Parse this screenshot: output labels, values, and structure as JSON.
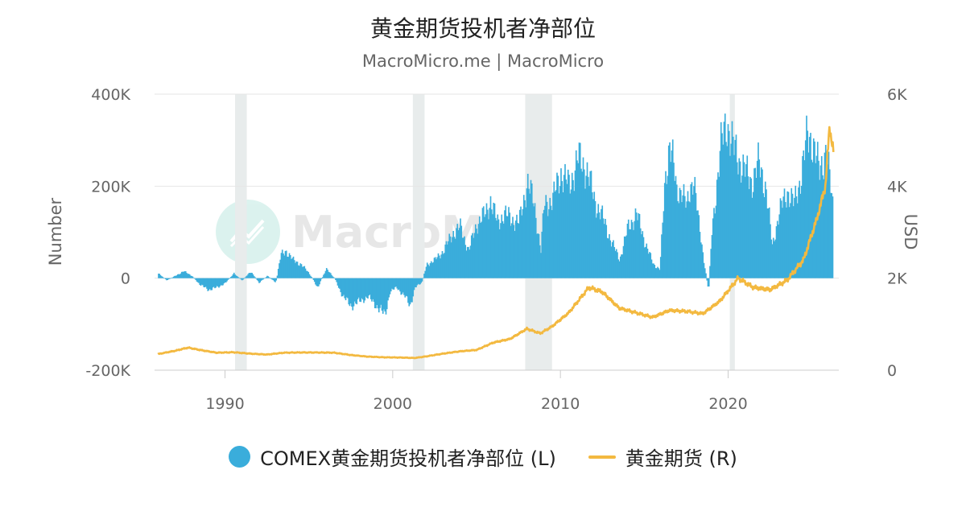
{
  "title": "黄金期货投机者净部位",
  "subtitle": "MacroMicro.me | MacroMicro",
  "watermark": {
    "text": "MacroMicro",
    "icon": "chart-line-icon"
  },
  "colors": {
    "bars": "#3aaddb",
    "line": "#f3b940",
    "recession": "#e8ecec",
    "grid": "#e6e6e6"
  },
  "legend": {
    "bars_label": "COMEX黄金期货投机者净部位 (L)",
    "line_label": "黄金期货 (R)"
  },
  "chart_data": {
    "type": "bar+line",
    "title": "黄金期货投机者净部位",
    "subtitle": "MacroMicro.me | MacroMicro",
    "x_ticks": [
      "1990",
      "2000",
      "2010",
      "2020"
    ],
    "xlim": [
      1985.8,
      2026.6
    ],
    "left_axis": {
      "label": "Number",
      "ticks": [
        "400K",
        "200K",
        "0",
        "-200K"
      ],
      "tick_values": [
        400000,
        200000,
        0,
        -200000
      ],
      "range": [
        -200000,
        400000
      ]
    },
    "right_axis": {
      "label": "USD",
      "ticks": [
        "6K",
        "4K",
        "2K",
        "0"
      ],
      "tick_values": [
        6000,
        4000,
        2000,
        0
      ],
      "range": [
        0,
        6000
      ]
    },
    "recession_bands": [
      [
        1990.6,
        1991.3
      ],
      [
        2001.2,
        2001.9
      ],
      [
        2007.9,
        2009.5
      ],
      [
        2020.1,
        2020.4
      ]
    ],
    "series": [
      {
        "name": "COMEX黄金期货投机者净部位 (L)",
        "axis": "left",
        "type": "bar",
        "points": [
          [
            1986.0,
            10000
          ],
          [
            1986.5,
            -5000
          ],
          [
            1987.0,
            5000
          ],
          [
            1987.5,
            15000
          ],
          [
            1988.0,
            5000
          ],
          [
            1988.5,
            -15000
          ],
          [
            1989.0,
            -25000
          ],
          [
            1989.5,
            -20000
          ],
          [
            1990.0,
            -10000
          ],
          [
            1990.5,
            10000
          ],
          [
            1991.0,
            -5000
          ],
          [
            1991.5,
            15000
          ],
          [
            1992.0,
            -10000
          ],
          [
            1992.5,
            5000
          ],
          [
            1993.0,
            -10000
          ],
          [
            1993.3,
            50000
          ],
          [
            1993.6,
            60000
          ],
          [
            1994.0,
            40000
          ],
          [
            1994.5,
            30000
          ],
          [
            1995.0,
            10000
          ],
          [
            1995.5,
            -20000
          ],
          [
            1996.0,
            20000
          ],
          [
            1996.5,
            0
          ],
          [
            1997.0,
            -40000
          ],
          [
            1997.5,
            -60000
          ],
          [
            1998.0,
            -50000
          ],
          [
            1998.5,
            -40000
          ],
          [
            1999.0,
            -60000
          ],
          [
            1999.5,
            -80000
          ],
          [
            1999.8,
            -30000
          ],
          [
            2000.2,
            -20000
          ],
          [
            2000.7,
            -40000
          ],
          [
            2001.0,
            -60000
          ],
          [
            2001.3,
            -20000
          ],
          [
            2001.7,
            -10000
          ],
          [
            2002.0,
            30000
          ],
          [
            2002.5,
            40000
          ],
          [
            2003.0,
            60000
          ],
          [
            2003.3,
            80000
          ],
          [
            2003.6,
            100000
          ],
          [
            2004.0,
            110000
          ],
          [
            2004.5,
            60000
          ],
          [
            2005.0,
            120000
          ],
          [
            2005.5,
            140000
          ],
          [
            2005.8,
            170000
          ],
          [
            2006.2,
            120000
          ],
          [
            2006.6,
            140000
          ],
          [
            2007.0,
            130000
          ],
          [
            2007.5,
            120000
          ],
          [
            2008.0,
            210000
          ],
          [
            2008.4,
            160000
          ],
          [
            2008.8,
            60000
          ],
          [
            2009.0,
            160000
          ],
          [
            2009.5,
            170000
          ],
          [
            2010.0,
            230000
          ],
          [
            2010.5,
            200000
          ],
          [
            2011.0,
            260000
          ],
          [
            2011.5,
            240000
          ],
          [
            2012.0,
            170000
          ],
          [
            2012.5,
            130000
          ],
          [
            2013.0,
            80000
          ],
          [
            2013.5,
            40000
          ],
          [
            2014.0,
            110000
          ],
          [
            2014.5,
            140000
          ],
          [
            2015.0,
            80000
          ],
          [
            2015.5,
            30000
          ],
          [
            2015.9,
            20000
          ],
          [
            2016.2,
            200000
          ],
          [
            2016.5,
            310000
          ],
          [
            2016.9,
            180000
          ],
          [
            2017.2,
            200000
          ],
          [
            2017.5,
            150000
          ],
          [
            2017.9,
            230000
          ],
          [
            2018.2,
            120000
          ],
          [
            2018.6,
            20000
          ],
          [
            2018.8,
            -30000
          ],
          [
            2019.0,
            100000
          ],
          [
            2019.5,
            280000
          ],
          [
            2019.9,
            340000
          ],
          [
            2020.3,
            280000
          ],
          [
            2020.6,
            260000
          ],
          [
            2021.0,
            230000
          ],
          [
            2021.4,
            210000
          ],
          [
            2021.8,
            250000
          ],
          [
            2022.2,
            200000
          ],
          [
            2022.6,
            70000
          ],
          [
            2023.0,
            140000
          ],
          [
            2023.5,
            190000
          ],
          [
            2023.9,
            160000
          ],
          [
            2024.3,
            220000
          ],
          [
            2024.7,
            310000
          ],
          [
            2025.0,
            300000
          ],
          [
            2025.4,
            230000
          ],
          [
            2025.8,
            280000
          ],
          [
            2026.2,
            160000
          ]
        ]
      },
      {
        "name": "黄金期货 (R)",
        "axis": "right",
        "type": "line",
        "points": [
          [
            1986.0,
            350
          ],
          [
            1987.0,
            420
          ],
          [
            1987.8,
            490
          ],
          [
            1988.5,
            440
          ],
          [
            1989.5,
            380
          ],
          [
            1990.5,
            390
          ],
          [
            1991.5,
            360
          ],
          [
            1992.5,
            340
          ],
          [
            1993.5,
            380
          ],
          [
            1994.5,
            385
          ],
          [
            1995.5,
            385
          ],
          [
            1996.5,
            380
          ],
          [
            1997.5,
            330
          ],
          [
            1998.5,
            295
          ],
          [
            1999.5,
            280
          ],
          [
            2000.5,
            275
          ],
          [
            2001.3,
            265
          ],
          [
            2002.0,
            300
          ],
          [
            2003.0,
            360
          ],
          [
            2004.0,
            410
          ],
          [
            2005.0,
            440
          ],
          [
            2006.0,
            600
          ],
          [
            2007.0,
            680
          ],
          [
            2008.0,
            900
          ],
          [
            2008.8,
            800
          ],
          [
            2009.5,
            950
          ],
          [
            2010.5,
            1250
          ],
          [
            2011.7,
            1800
          ],
          [
            2012.5,
            1700
          ],
          [
            2013.5,
            1350
          ],
          [
            2014.5,
            1250
          ],
          [
            2015.5,
            1150
          ],
          [
            2016.5,
            1300
          ],
          [
            2017.5,
            1280
          ],
          [
            2018.5,
            1230
          ],
          [
            2019.5,
            1500
          ],
          [
            2020.6,
            2000
          ],
          [
            2021.5,
            1800
          ],
          [
            2022.5,
            1750
          ],
          [
            2023.5,
            1950
          ],
          [
            2024.5,
            2400
          ],
          [
            2025.3,
            3300
          ],
          [
            2025.8,
            4000
          ],
          [
            2026.05,
            5300
          ],
          [
            2026.3,
            4700
          ]
        ]
      }
    ],
    "grid": true,
    "legend_position": "bottom"
  }
}
